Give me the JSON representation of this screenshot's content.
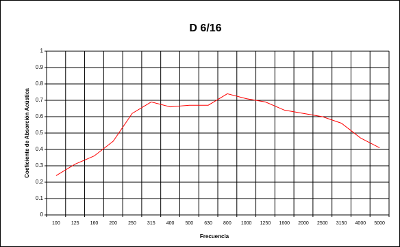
{
  "chart_data": {
    "type": "line",
    "title": "D 6/16",
    "x_label": "Frecuencia",
    "y_label": "Coeficiente de Absorción Acústica",
    "categories": [
      "100",
      "125",
      "160",
      "200",
      "250",
      "315",
      "400",
      "500",
      "630",
      "800",
      "1000",
      "1250",
      "1600",
      "2000",
      "2500",
      "3150",
      "4000",
      "5000"
    ],
    "series": [
      {
        "name": "D 6/16",
        "color": "#ff0000",
        "values": [
          0.24,
          0.31,
          0.36,
          0.45,
          0.62,
          0.69,
          0.66,
          0.67,
          0.67,
          0.74,
          0.71,
          0.69,
          0.64,
          0.62,
          0.6,
          0.56,
          0.47,
          0.41
        ]
      }
    ],
    "ylim": [
      0,
      1
    ],
    "yticks": [
      0,
      0.1,
      0.2,
      0.3,
      0.4,
      0.5,
      0.6,
      0.7,
      0.8,
      0.9,
      1
    ],
    "grid": true
  }
}
